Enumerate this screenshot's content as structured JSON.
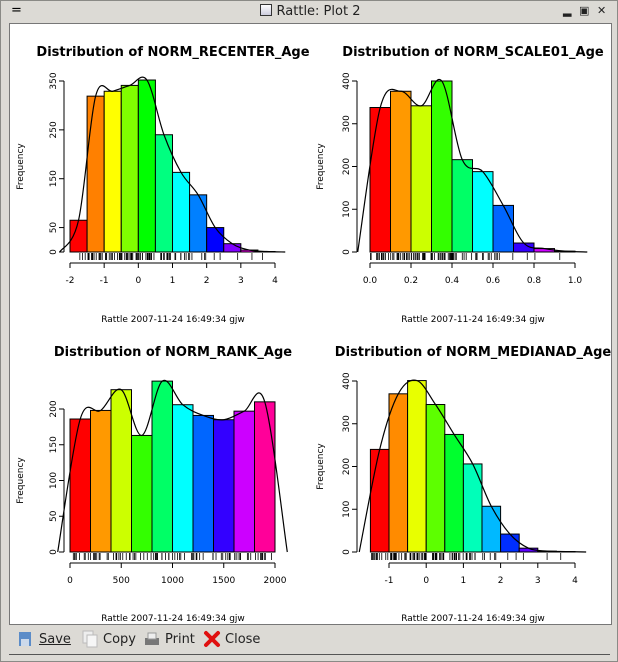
{
  "window": {
    "title": "Rattle: Plot 2"
  },
  "toolbar": {
    "save": "Save",
    "copy": "Copy",
    "print": "Print",
    "close": "Close"
  },
  "chart_data": [
    {
      "type": "bar",
      "title": "Distribution of NORM_RECENTER_Age",
      "ylabel": "Frequency",
      "xlabel": "",
      "bin_start": -2,
      "bin_width": 0.5,
      "values": [
        65,
        319,
        329,
        341,
        352,
        240,
        163,
        117,
        50,
        17,
        4,
        1
      ],
      "xticks": [
        "-2",
        "-1",
        "0",
        "1",
        "2",
        "3",
        "4"
      ],
      "xlim": [
        -2,
        4
      ],
      "yticks": [
        "0",
        "50",
        "150",
        "250",
        "350"
      ],
      "ylim": [
        0,
        350
      ],
      "palette": "rainbow",
      "density_curve": true,
      "rug": true,
      "footnote": "Rattle 2007-11-24 16:49:34 gjw"
    },
    {
      "type": "bar",
      "title": "Distribution of NORM_SCALE01_Age",
      "ylabel": "Frequency",
      "xlabel": "",
      "bin_start": 0,
      "bin_width": 0.1,
      "values": [
        338,
        376,
        342,
        400,
        216,
        188,
        109,
        21,
        8,
        2
      ],
      "xticks": [
        "0.0",
        "0.2",
        "0.4",
        "0.6",
        "0.8",
        "1.0"
      ],
      "xlim": [
        0,
        1
      ],
      "yticks": [
        "0",
        "100",
        "200",
        "300",
        "400"
      ],
      "ylim": [
        0,
        400
      ],
      "palette": "rainbow",
      "density_curve": true,
      "rug": true,
      "footnote": "Rattle 2007-11-24 16:49:34 gjw"
    },
    {
      "type": "bar",
      "title": "Distribution of NORM_RANK_Age",
      "ylabel": "Frequency",
      "xlabel": "",
      "bin_start": 0,
      "bin_width": 200,
      "values": [
        186,
        198,
        227,
        163,
        239,
        206,
        191,
        185,
        197,
        210
      ],
      "xticks": [
        "0",
        "500",
        "1000",
        "1500",
        "2000"
      ],
      "xlim": [
        0,
        2000
      ],
      "yticks": [
        "0",
        "50",
        "100",
        "150",
        "200"
      ],
      "ylim": [
        0,
        200
      ],
      "palette": "rainbow",
      "density_curve": true,
      "rug": true,
      "footnote": "Rattle 2007-11-24 16:49:34 gjw"
    },
    {
      "type": "bar",
      "title": "Distribution of NORM_MEDIANAD_Age",
      "ylabel": "Frequency",
      "xlabel": "",
      "bin_start": -1.5,
      "bin_width": 0.5,
      "values": [
        240,
        370,
        401,
        345,
        275,
        206,
        107,
        42,
        9,
        2,
        1
      ],
      "xticks": [
        "-1",
        "0",
        "1",
        "2",
        "3",
        "4"
      ],
      "xlim": [
        -1,
        4
      ],
      "yticks": [
        "0",
        "100",
        "200",
        "300",
        "400"
      ],
      "ylim": [
        0,
        400
      ],
      "palette": "rainbow",
      "density_curve": true,
      "rug": true,
      "footnote": "Rattle 2007-11-24 16:49:34 gjw"
    }
  ]
}
